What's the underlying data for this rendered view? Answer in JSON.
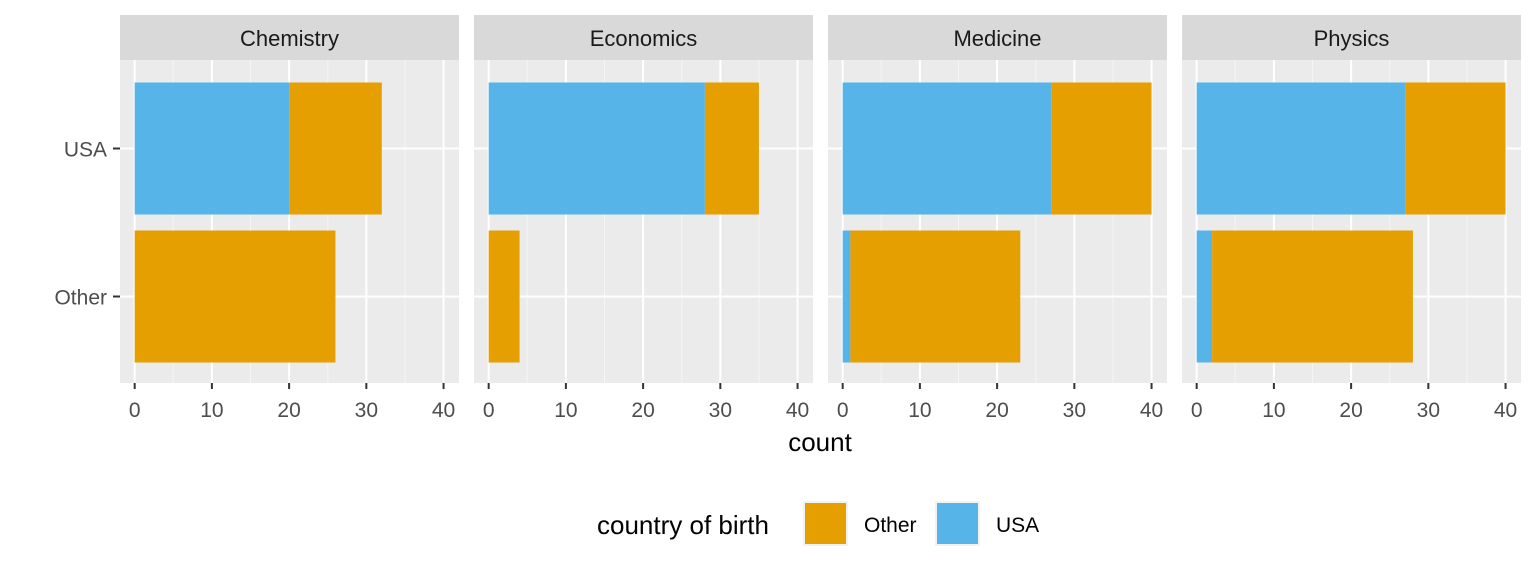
{
  "chart_data": {
    "type": "bar",
    "orientation": "horizontal",
    "stacked": true,
    "facets": [
      "Chemistry",
      "Economics",
      "Medicine",
      "Physics"
    ],
    "categories": [
      "USA",
      "Other"
    ],
    "series": [
      {
        "name": "USA",
        "color": "#56B4E9",
        "values": {
          "Chemistry": [
            20,
            0
          ],
          "Economics": [
            28,
            0
          ],
          "Medicine": [
            27,
            1
          ],
          "Physics": [
            27,
            2
          ]
        }
      },
      {
        "name": "Other",
        "color": "#E69F00",
        "values": {
          "Chemistry": [
            12,
            26
          ],
          "Economics": [
            7,
            4
          ],
          "Medicine": [
            13,
            22
          ],
          "Physics": [
            13,
            26
          ]
        }
      }
    ],
    "xlabel": "count",
    "xlim": [
      -1.9,
      42
    ],
    "xticks": [
      0,
      10,
      20,
      30,
      40
    ],
    "grid": true,
    "legend": {
      "title": "country of birth",
      "position": "bottom",
      "entries": [
        "Other",
        "USA"
      ]
    }
  }
}
